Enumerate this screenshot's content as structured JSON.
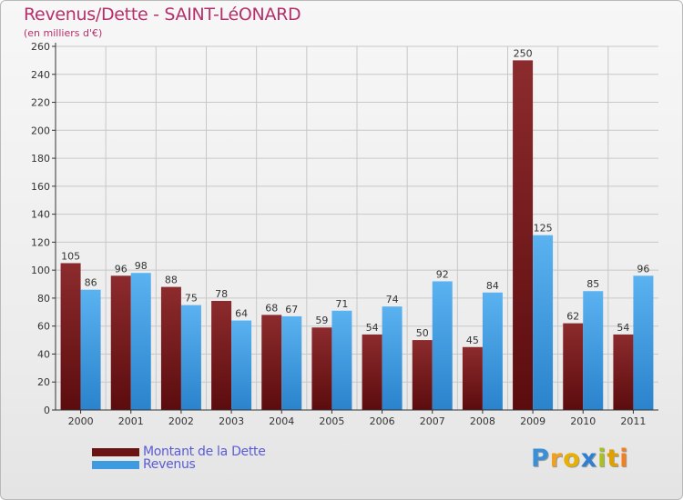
{
  "title": "Revenus/Dette - SAINT-LéONARD",
  "subtitle": "(en milliers d'€)",
  "logo": {
    "text": "Proxiti",
    "letters": [
      {
        "ch": "P",
        "color": "#3b8fd6"
      },
      {
        "ch": "r",
        "color": "#f0a020"
      },
      {
        "ch": "o",
        "color": "#e8b000"
      },
      {
        "ch": "x",
        "color": "#2f7fd0"
      },
      {
        "ch": "i",
        "color": "#a8c020"
      },
      {
        "ch": "t",
        "color": "#e0a000"
      },
      {
        "ch": "i",
        "color": "#f08020"
      }
    ]
  },
  "legend": {
    "dette_label": "Montant de la Dette",
    "revenus_label": "Revenus"
  },
  "colors": {
    "dette": "#7a1a1c",
    "dette_light": "#8f2a2c",
    "revenus": "#3f9be0",
    "revenus_light": "#55aef0",
    "grid": "#c8c8c8",
    "axis": "#333333"
  },
  "chart_data": {
    "type": "bar",
    "title": "Revenus/Dette - SAINT-LéONARD",
    "ylabel": "(en milliers d'€)",
    "xlabel": "",
    "categories": [
      "2000",
      "2001",
      "2002",
      "2003",
      "2004",
      "2005",
      "2006",
      "2007",
      "2008",
      "2009",
      "2010",
      "2011"
    ],
    "series": [
      {
        "name": "Montant de la Dette",
        "values": [
          105,
          96,
          88,
          78,
          68,
          59,
          54,
          50,
          45,
          250,
          62,
          54
        ]
      },
      {
        "name": "Revenus",
        "values": [
          86,
          98,
          75,
          64,
          67,
          71,
          74,
          92,
          84,
          125,
          85,
          96
        ]
      }
    ],
    "ylim": [
      0,
      260
    ],
    "yticks": [
      "0",
      "20",
      "40",
      "60",
      "80",
      "100",
      "120",
      "140",
      "160",
      "180",
      "200",
      "220",
      "240",
      "260"
    ],
    "grid": true,
    "legend": "bottom-left"
  }
}
